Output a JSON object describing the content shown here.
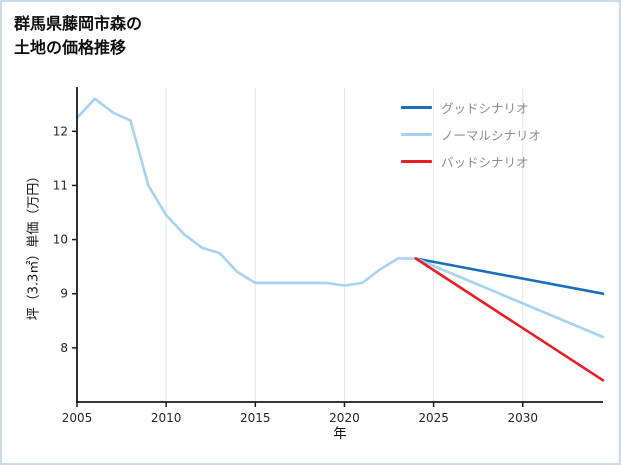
{
  "title": {
    "line1": "群馬県藤岡市森の",
    "line2": "土地の価格推移"
  },
  "axes": {
    "x_label": "年",
    "y_label": "坪（3.3㎡）単価（万円）"
  },
  "legend": [
    {
      "label": "グッドシナリオ",
      "color": "#1b6fba"
    },
    {
      "label": "ノーマルシナリオ",
      "color": "#a6d2f4"
    },
    {
      "label": "バッドシナリオ",
      "color": "#ea1d25"
    }
  ],
  "chart_data": {
    "type": "line",
    "title": "群馬県藤岡市森の土地の価格推移",
    "xlabel": "年",
    "ylabel": "坪（3.3㎡）単価（万円）",
    "xlim": [
      2005,
      2034.5
    ],
    "ylim": [
      7.0,
      12.8
    ],
    "x_ticks": [
      2005,
      2010,
      2015,
      2020,
      2025,
      2030
    ],
    "y_ticks": [
      8,
      9,
      10,
      11,
      12
    ],
    "grid": "vertical",
    "legend_position": "upper right",
    "series": [
      {
        "key": "historical",
        "name": "historical",
        "color": "#a6d2f4",
        "x": [
          2005,
          2006,
          2007,
          2008,
          2009,
          2010,
          2011,
          2012,
          2013,
          2014,
          2015,
          2016,
          2017,
          2018,
          2019,
          2020,
          2021,
          2022,
          2023,
          2024
        ],
        "values": [
          12.25,
          12.6,
          12.35,
          12.2,
          11.0,
          10.45,
          10.1,
          9.85,
          9.75,
          9.4,
          9.2,
          9.2,
          9.2,
          9.2,
          9.2,
          9.15,
          9.2,
          9.45,
          9.65,
          9.65
        ]
      },
      {
        "key": "good",
        "name": "グッドシナリオ",
        "color": "#1b6fba",
        "x": [
          2024,
          2034.5
        ],
        "values": [
          9.65,
          9.0
        ]
      },
      {
        "key": "normal",
        "name": "ノーマルシナリオ",
        "color": "#a6d2f4",
        "x": [
          2024,
          2034.5
        ],
        "values": [
          9.65,
          8.2
        ]
      },
      {
        "key": "bad",
        "name": "バッドシナリオ",
        "color": "#ea1d25",
        "x": [
          2024,
          2034.5
        ],
        "values": [
          9.65,
          7.4
        ]
      }
    ]
  }
}
